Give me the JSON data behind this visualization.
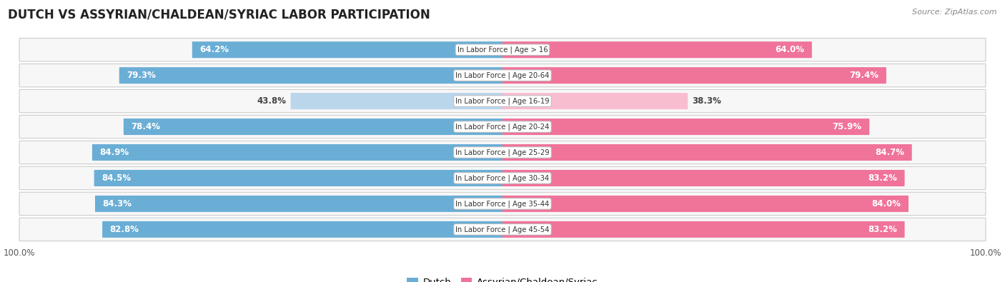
{
  "title": "DUTCH VS ASSYRIAN/CHALDEAN/SYRIAC LABOR PARTICIPATION",
  "source": "Source: ZipAtlas.com",
  "categories": [
    "In Labor Force | Age > 16",
    "In Labor Force | Age 20-64",
    "In Labor Force | Age 16-19",
    "In Labor Force | Age 20-24",
    "In Labor Force | Age 25-29",
    "In Labor Force | Age 30-34",
    "In Labor Force | Age 35-44",
    "In Labor Force | Age 45-54"
  ],
  "dutch_values": [
    64.2,
    79.3,
    43.8,
    78.4,
    84.9,
    84.5,
    84.3,
    82.8
  ],
  "assyrian_values": [
    64.0,
    79.4,
    38.3,
    75.9,
    84.7,
    83.2,
    84.0,
    83.2
  ],
  "dutch_color": "#6aaed6",
  "dutch_color_light": "#bad6eb",
  "assyrian_color": "#f0739a",
  "assyrian_color_light": "#f9bdd0",
  "row_bg_color": "#e8e8e8",
  "row_inner_bg": "#f7f7f7",
  "max_value": 100.0,
  "label_fontsize": 8.5,
  "title_fontsize": 12,
  "source_fontsize": 8,
  "legend_fontsize": 9.5,
  "value_threshold": 60.0
}
